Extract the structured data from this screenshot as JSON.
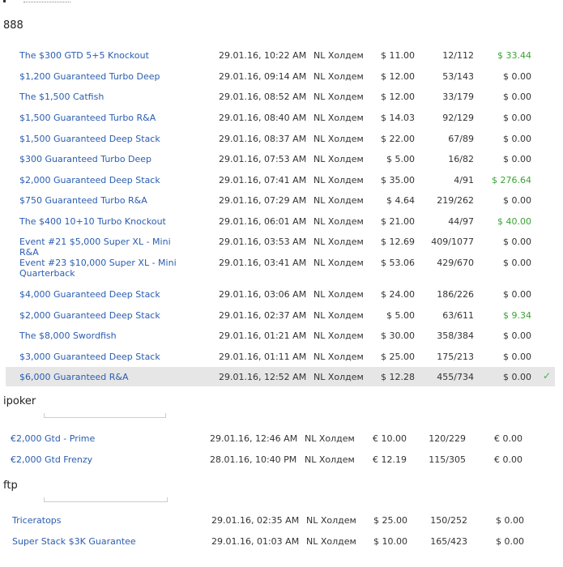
{
  "sections": [
    {
      "title": "888",
      "rows": [
        {
          "name": "The $300 GTD 5+5 Knockout",
          "date": "29.01.16, 10:22 AM",
          "game": "NL Холдем",
          "buyin": "$ 11.00",
          "place": "12/112",
          "win": "$ 33.44",
          "win_green": true
        },
        {
          "name": "$1,200 Guaranteed Turbo Deep",
          "date": "29.01.16, 09:14 AM",
          "game": "NL Холдем",
          "buyin": "$ 12.00",
          "place": "53/143",
          "win": "$ 0.00",
          "win_green": false
        },
        {
          "name": "The $1,500 Catfish",
          "date": "29.01.16, 08:52 AM",
          "game": "NL Холдем",
          "buyin": "$ 12.00",
          "place": "33/179",
          "win": "$ 0.00",
          "win_green": false
        },
        {
          "name": "$1,500 Guaranteed Turbo R&A",
          "date": "29.01.16, 08:40 AM",
          "game": "NL Холдем",
          "buyin": "$ 14.03",
          "place": "92/129",
          "win": "$ 0.00",
          "win_green": false
        },
        {
          "name": "$1,500 Guaranteed Deep Stack",
          "date": "29.01.16, 08:37 AM",
          "game": "NL Холдем",
          "buyin": "$ 22.00",
          "place": "67/89",
          "win": "$ 0.00",
          "win_green": false
        },
        {
          "name": "$300 Guaranteed Turbo Deep",
          "date": "29.01.16, 07:53 AM",
          "game": "NL Холдем",
          "buyin": "$ 5.00",
          "place": "16/82",
          "win": "$ 0.00",
          "win_green": false
        },
        {
          "name": "$2,000 Guaranteed Deep Stack",
          "date": "29.01.16, 07:41 AM",
          "game": "NL Холдем",
          "buyin": "$ 35.00",
          "place": "4/91",
          "win": "$ 276.64",
          "win_green": true
        },
        {
          "name": "$750 Guaranteed Turbo R&A",
          "date": "29.01.16, 07:29 AM",
          "game": "NL Холдем",
          "buyin": "$ 4.64",
          "place": "219/262",
          "win": "$ 0.00",
          "win_green": false
        },
        {
          "name": "The $400 10+10 Turbo Knockout",
          "date": "29.01.16, 06:01 AM",
          "game": "NL Холдем",
          "buyin": "$ 21.00",
          "place": "44/97",
          "win": "$ 40.00",
          "win_green": true
        },
        {
          "name": "Event #21 $5,000 Super XL - Mini R&A",
          "date": "29.01.16, 03:53 AM",
          "game": "NL Холдем",
          "buyin": "$ 12.69",
          "place": "409/1077",
          "win": "$ 0.00",
          "win_green": false
        },
        {
          "name": "Event #23 $10,000 Super XL - Mini Quarterback",
          "date": "29.01.16, 03:41 AM",
          "game": "NL Холдем",
          "buyin": "$ 53.06",
          "place": "429/670",
          "win": "$ 0.00",
          "win_green": false
        },
        {
          "name": "$4,000 Guaranteed Deep Stack",
          "date": "29.01.16, 03:06 AM",
          "game": "NL Холдем",
          "buyin": "$ 24.00",
          "place": "186/226",
          "win": "$ 0.00",
          "win_green": false
        },
        {
          "name": "$2,000 Guaranteed Deep Stack",
          "date": "29.01.16, 02:37 AM",
          "game": "NL Холдем",
          "buyin": "$ 5.00",
          "place": "63/611",
          "win": "$ 9.34",
          "win_green": true
        },
        {
          "name": "The $8,000 Swordfish",
          "date": "29.01.16, 01:21 AM",
          "game": "NL Холдем",
          "buyin": "$ 30.00",
          "place": "358/384",
          "win": "$ 0.00",
          "win_green": false
        },
        {
          "name": "$3,000 Guaranteed Deep Stack",
          "date": "29.01.16, 01:11 AM",
          "game": "NL Холдем",
          "buyin": "$ 25.00",
          "place": "175/213",
          "win": "$ 0.00",
          "win_green": false
        },
        {
          "name": "$6,000 Guaranteed R&A",
          "date": "29.01.16, 12:52 AM",
          "game": "NL Холдем",
          "buyin": "$ 12.28",
          "place": "455/734",
          "win": "$ 0.00",
          "win_green": false,
          "selected": true,
          "check": "✓"
        }
      ]
    },
    {
      "title": "ipoker",
      "rows": [
        {
          "name": "€2,000 Gtd - Prime",
          "date": "29.01.16, 12:46 AM",
          "game": "NL Холдем",
          "buyin": "€ 10.00",
          "place": "120/229",
          "win": "€ 0.00",
          "win_green": false
        },
        {
          "name": "€2,000 Gtd Frenzy",
          "date": "28.01.16, 10:40 PM",
          "game": "NL Холдем",
          "buyin": "€ 12.19",
          "place": "115/305",
          "win": "€ 0.00",
          "win_green": false
        }
      ]
    },
    {
      "title": "ftp",
      "rows": [
        {
          "name": "Triceratops",
          "date": "29.01.16, 02:35 AM",
          "game": "NL Холдем",
          "buyin": "$ 25.00",
          "place": "150/252",
          "win": "$ 0.00",
          "win_green": false
        },
        {
          "name": "Super Stack $3K Guarantee",
          "date": "29.01.16, 01:03 AM",
          "game": "NL Холдем",
          "buyin": "$ 10.00",
          "place": "165/423",
          "win": "$ 0.00",
          "win_green": false
        }
      ]
    }
  ]
}
